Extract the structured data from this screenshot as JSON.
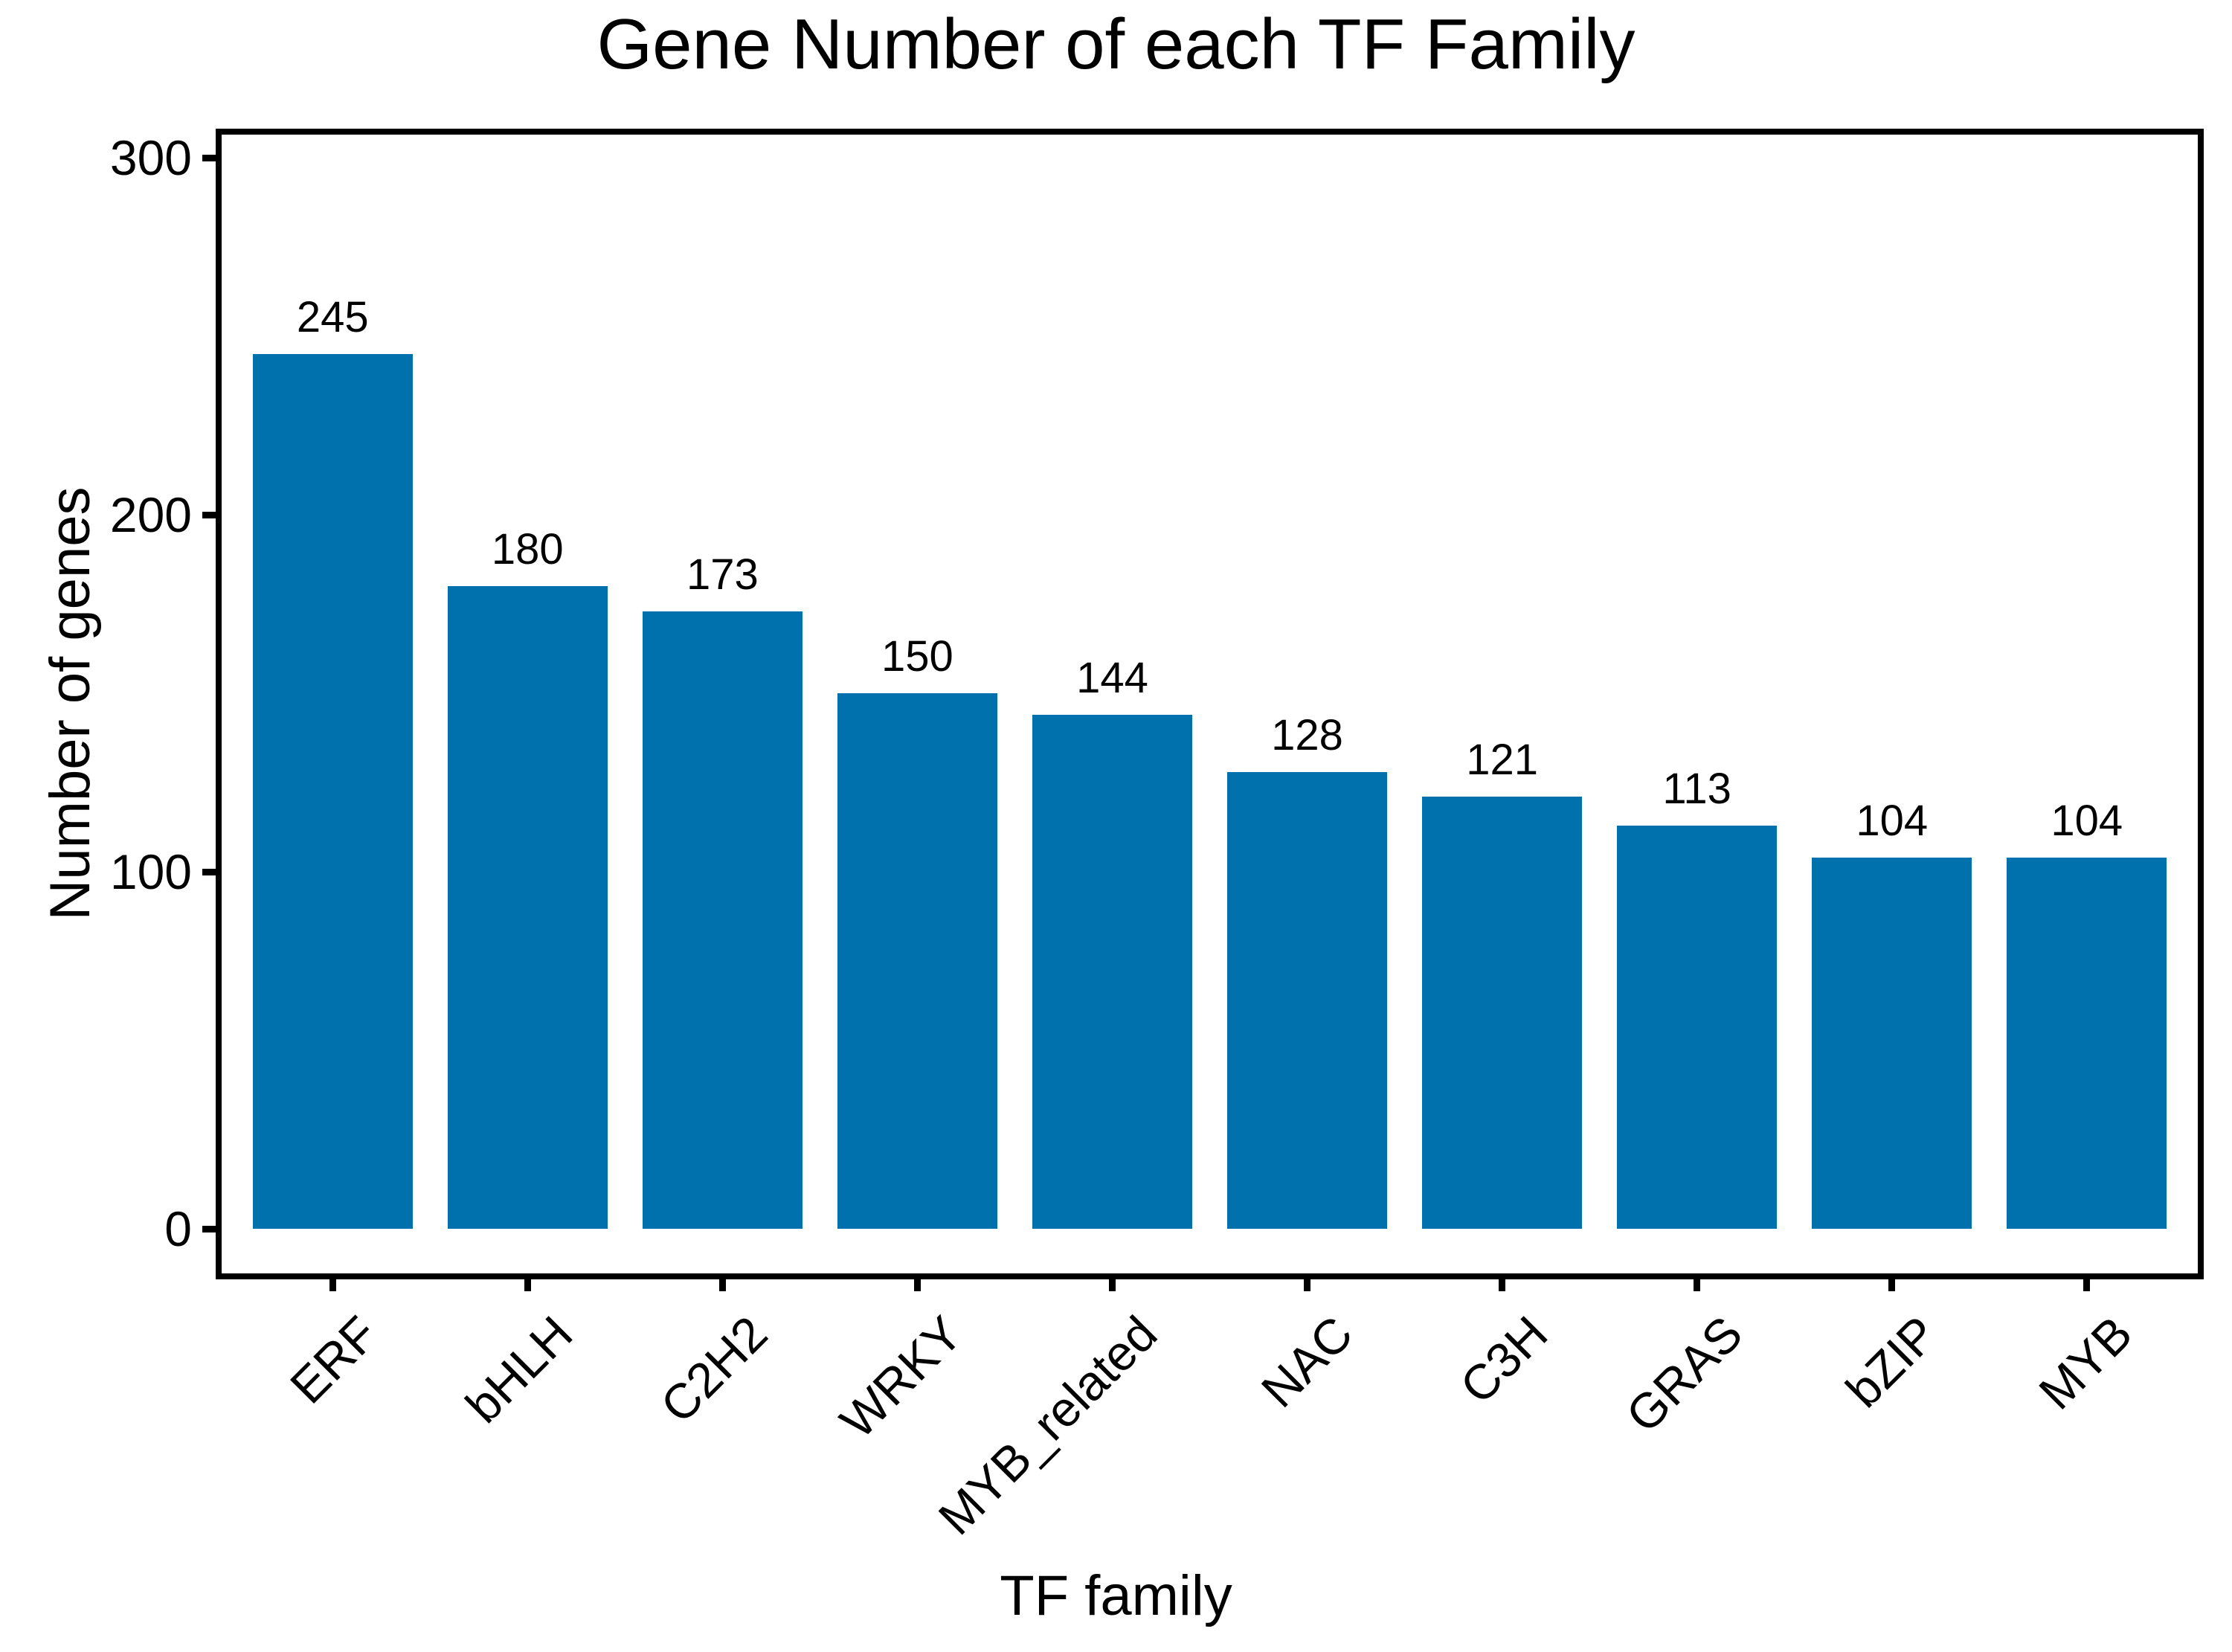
{
  "chart_data": {
    "type": "bar",
    "title": "Gene Number of each TF Family",
    "xlabel": "TF family",
    "ylabel": "Number of genes",
    "categories": [
      "ERF",
      "bHLH",
      "C2H2",
      "WRKY",
      "MYB_related",
      "NAC",
      "C3H",
      "GRAS",
      "bZIP",
      "MYB"
    ],
    "values": [
      245,
      180,
      173,
      150,
      144,
      128,
      121,
      113,
      104,
      104
    ],
    "value_labels": [
      "245",
      "180",
      "173",
      "150",
      "144",
      "128",
      "121",
      "113",
      "104",
      "104"
    ],
    "yticks": [
      0,
      100,
      200,
      300
    ],
    "ytick_labels": [
      "0",
      "100",
      "200",
      "300"
    ],
    "ylim": [
      -15,
      308
    ],
    "grid": false,
    "legend_position": "none",
    "bar_color": "#0071AD",
    "axis_color": "#000000",
    "text_color": "#000000"
  }
}
